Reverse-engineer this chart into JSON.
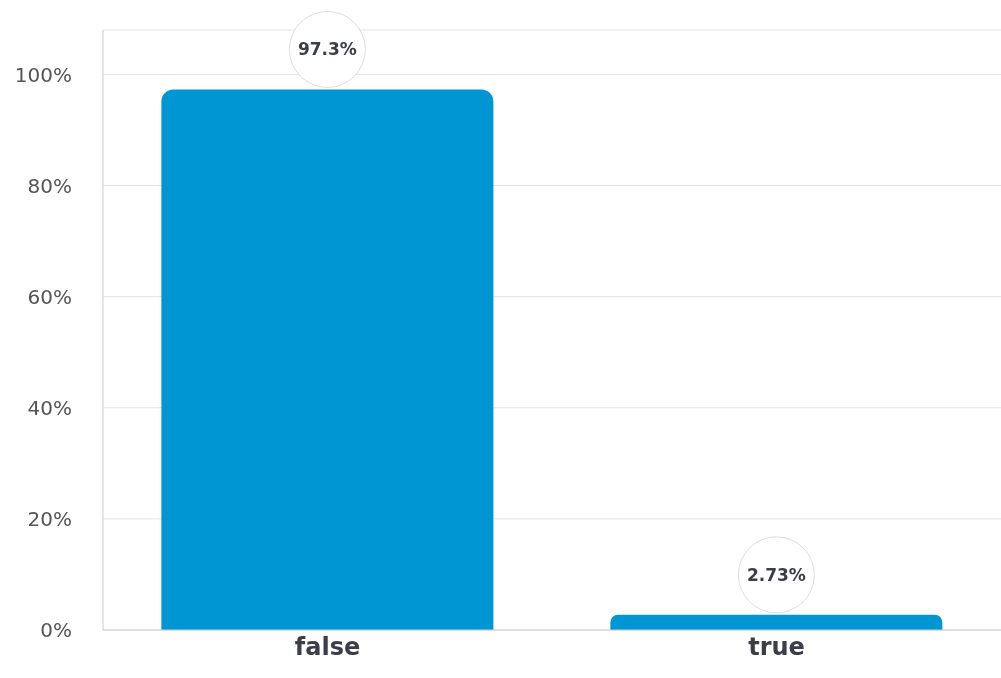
{
  "chart_data": {
    "type": "bar",
    "categories": [
      "false",
      "true"
    ],
    "values": [
      97.3,
      2.73
    ],
    "color": "#0095d3",
    "value_labels": [
      "97.3%",
      "2.73%"
    ],
    "ylim": [
      0,
      108
    ],
    "yticks": [
      {
        "value": 0,
        "label": "0%"
      },
      {
        "value": 20,
        "label": "20%"
      },
      {
        "value": 40,
        "label": "40%"
      },
      {
        "value": 60,
        "label": "60%"
      },
      {
        "value": 80,
        "label": "80%"
      },
      {
        "value": 100,
        "label": "100%"
      }
    ],
    "grid": "y"
  }
}
